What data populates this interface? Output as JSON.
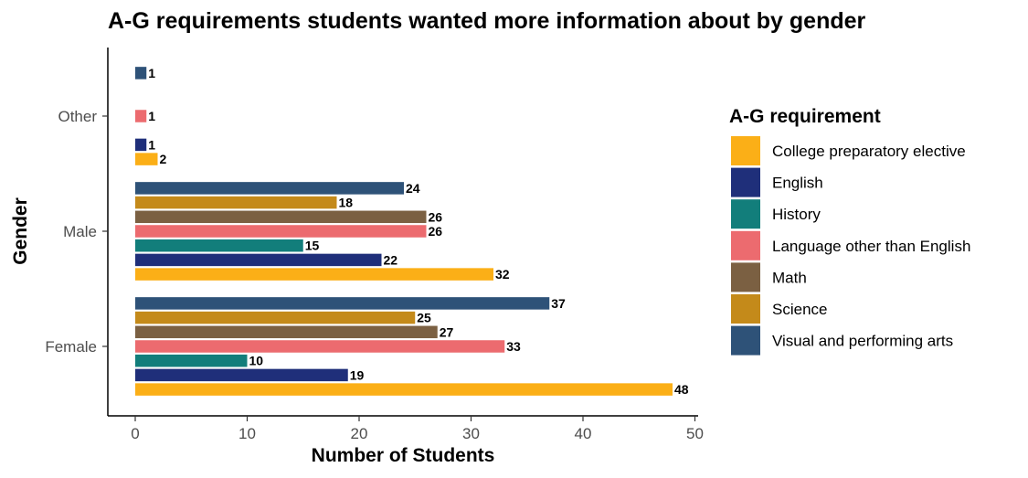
{
  "chart_data": {
    "type": "bar",
    "orientation": "horizontal",
    "title": "A-G requirements students wanted more information about by gender",
    "xlabel": "Number of Students",
    "ylabel": "Gender",
    "xlim": [
      0,
      50
    ],
    "x_ticks": [
      "0",
      "10",
      "20",
      "30",
      "40",
      "50"
    ],
    "categories": [
      "Female",
      "Male",
      "Other"
    ],
    "grid": false,
    "legend": {
      "title": "A-G requirement",
      "placement": "right"
    },
    "series": [
      {
        "name": "College preparatory elective",
        "color": "#FBAF17",
        "values": [
          48,
          32,
          2
        ]
      },
      {
        "name": "English",
        "color": "#1F2F7A",
        "values": [
          19,
          22,
          1
        ]
      },
      {
        "name": "History",
        "color": "#127E7B",
        "values": [
          10,
          15,
          null
        ]
      },
      {
        "name": "Language other than English",
        "color": "#EC6B6F",
        "values": [
          33,
          26,
          1
        ]
      },
      {
        "name": "Math",
        "color": "#7B6042",
        "values": [
          27,
          26,
          null
        ]
      },
      {
        "name": "Science",
        "color": "#C48A1A",
        "values": [
          25,
          18,
          null
        ]
      },
      {
        "name": "Visual and performing arts",
        "color": "#2E5278",
        "values": [
          37,
          24,
          1
        ]
      }
    ]
  }
}
